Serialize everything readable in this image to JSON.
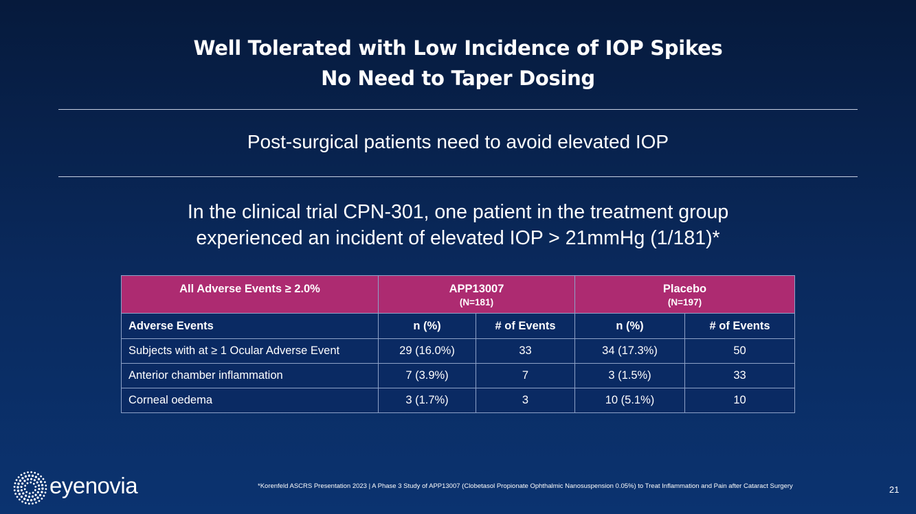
{
  "title": {
    "line1": "Well Tolerated with Low Incidence of IOP Spikes",
    "line2": "No Need to Taper Dosing"
  },
  "subtitle": "Post-surgical patients need to avoid elevated IOP",
  "statement": {
    "line1": "In the clinical trial CPN-301, one patient in the treatment group",
    "line2": "experienced an incident of elevated IOP > 21mmHg (1/181)*"
  },
  "table": {
    "header1": {
      "col1": "All Adverse Events ≥ 2.0%",
      "group1": {
        "name": "APP13007",
        "n": "(N=181)"
      },
      "group2": {
        "name": "Placebo",
        "n": "(N=197)"
      }
    },
    "header2": [
      "Adverse Events",
      "n (%)",
      "# of Events",
      "n (%)",
      "# of Events"
    ],
    "rows": [
      [
        "Subjects with at ≥ 1 Ocular Adverse Event",
        "29 (16.0%)",
        "33",
        "34 (17.3%)",
        "50"
      ],
      [
        "Anterior chamber inflammation",
        "7 (3.9%)",
        "7",
        "3 (1.5%)",
        "33"
      ],
      [
        "Corneal oedema",
        "3 (1.7%)",
        "3",
        "10 (5.1%)",
        "10"
      ]
    ]
  },
  "footnote": "*Korenfeld ASCRS Presentation 2023 | A Phase 3 Study of APP13007 (Clobetasol Propionate Ophthalmic Nanosuspension 0.05%) to Treat Inflammation and Pain after Cataract Surgery",
  "page_number": "21",
  "logo": {
    "text": "eyenovia",
    "icon": "dotted-sunburst-logo-icon"
  }
}
